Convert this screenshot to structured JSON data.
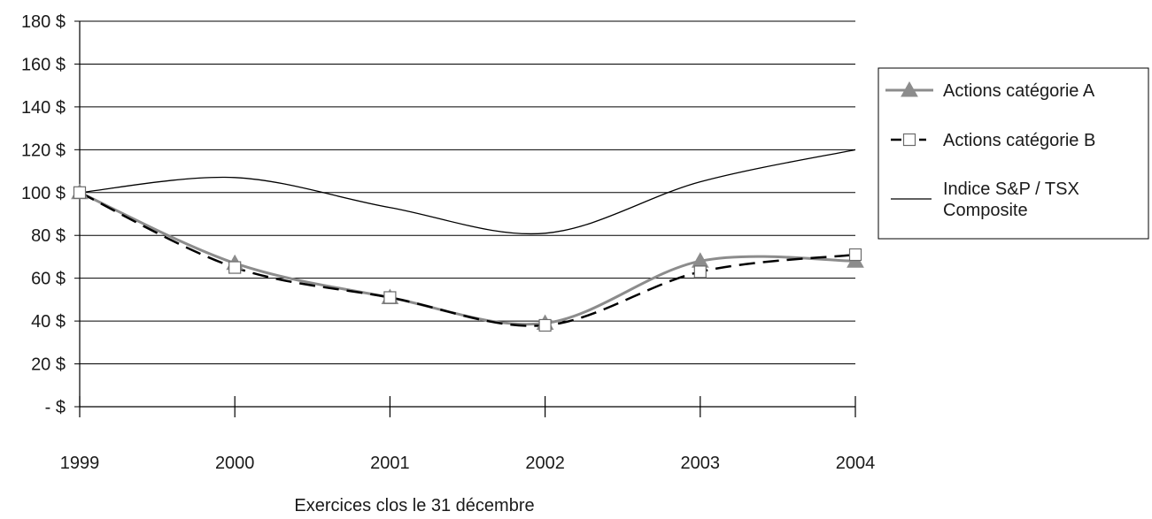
{
  "chart_data": {
    "type": "line",
    "x": [
      "1999",
      "2000",
      "2001",
      "2002",
      "2003",
      "2004"
    ],
    "xlabel": "Exercices clos le 31 décembre",
    "ylabel": "",
    "title": "",
    "ylim": [
      0,
      180
    ],
    "y_ticks": [
      {
        "value": 0,
        "label": "- $"
      },
      {
        "value": 20,
        "label": "20 $"
      },
      {
        "value": 40,
        "label": "40 $"
      },
      {
        "value": 60,
        "label": "60 $"
      },
      {
        "value": 80,
        "label": "80 $"
      },
      {
        "value": 100,
        "label": "100 $"
      },
      {
        "value": 120,
        "label": "120 $"
      },
      {
        "value": 140,
        "label": "140 $"
      },
      {
        "value": 160,
        "label": "160 $"
      },
      {
        "value": 180,
        "label": "180 $"
      }
    ],
    "grid": "horizontal",
    "legend_position": "right",
    "series": [
      {
        "name": "Actions catégorie A",
        "values": [
          100,
          67,
          51,
          39,
          68,
          68
        ],
        "color": "#8c8c8c",
        "line_style": "solid",
        "marker": "triangle"
      },
      {
        "name": "Actions catégorie B",
        "values": [
          100,
          65,
          51,
          38,
          63,
          71
        ],
        "color": "#000000",
        "line_style": "dashed",
        "marker": "square"
      },
      {
        "name": "Indice S&P / TSX Composite",
        "name_lines": [
          "Indice S&P / TSX",
          "Composite"
        ],
        "values": [
          100,
          107,
          93,
          81,
          105,
          120
        ],
        "color": "#000000",
        "line_style": "solid",
        "marker": "none"
      }
    ]
  }
}
